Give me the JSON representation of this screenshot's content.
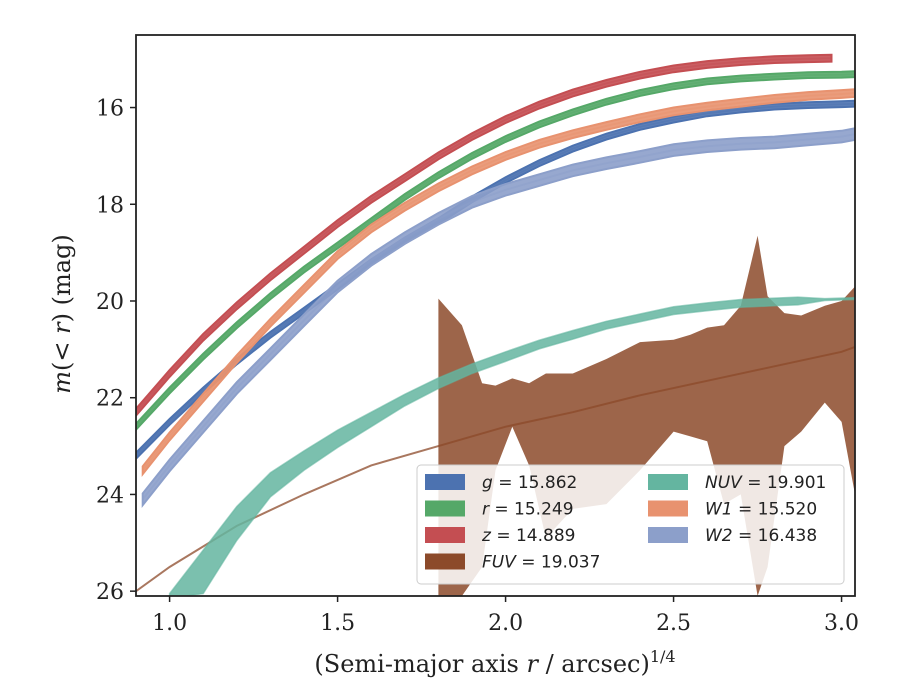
{
  "chart_data": {
    "type": "line",
    "xlabel": "(Semi-major axis r / arcsec)",
    "xlabel_sup": "1/4",
    "ylabel": "m(< r) (mag)",
    "xlim": [
      0.9,
      3.04
    ],
    "ylim": [
      26.1,
      14.5
    ],
    "y_inverted": true,
    "x_ticks": [
      1.0,
      1.5,
      2.0,
      2.5,
      3.0
    ],
    "x_tick_labels": [
      "1.0",
      "1.5",
      "2.0",
      "2.5",
      "3.0"
    ],
    "y_ticks": [
      16,
      18,
      20,
      22,
      24,
      26
    ],
    "y_tick_labels": [
      "16",
      "18",
      "20",
      "22",
      "24",
      "26"
    ],
    "grid": false,
    "legend_position": "lower-right",
    "series": [
      {
        "name": "g",
        "legend_value": "15.862",
        "color": "#4c72b0",
        "x": [
          0.9,
          1.0,
          1.1,
          1.2,
          1.3,
          1.4,
          1.5,
          1.6,
          1.7,
          1.8,
          1.9,
          2.0,
          2.1,
          2.2,
          2.3,
          2.4,
          2.5,
          2.6,
          2.7,
          2.8,
          2.9,
          3.0,
          3.04
        ],
        "y": [
          23.2,
          22.5,
          21.85,
          21.25,
          20.7,
          20.2,
          19.7,
          19.2,
          18.75,
          18.35,
          17.9,
          17.5,
          17.15,
          16.85,
          16.6,
          16.4,
          16.25,
          16.12,
          16.04,
          15.98,
          15.95,
          15.93,
          15.92
        ],
        "band": [
          0.06,
          0.06
        ]
      },
      {
        "name": "r",
        "legend_value": "15.249",
        "color": "#55a868",
        "x": [
          0.9,
          1.0,
          1.1,
          1.2,
          1.3,
          1.4,
          1.5,
          1.6,
          1.7,
          1.8,
          1.9,
          2.0,
          2.1,
          2.2,
          2.3,
          2.4,
          2.5,
          2.6,
          2.7,
          2.8,
          2.9,
          3.0,
          3.04
        ],
        "y": [
          22.6,
          21.85,
          21.15,
          20.5,
          19.9,
          19.35,
          18.85,
          18.35,
          17.85,
          17.4,
          17.0,
          16.65,
          16.35,
          16.1,
          15.88,
          15.7,
          15.56,
          15.46,
          15.4,
          15.36,
          15.33,
          15.32,
          15.31
        ],
        "band": [
          0.06,
          0.06
        ]
      },
      {
        "name": "z",
        "legend_value": "14.889",
        "color": "#c44e52",
        "x": [
          0.9,
          1.0,
          1.1,
          1.2,
          1.3,
          1.4,
          1.5,
          1.6,
          1.7,
          1.8,
          1.9,
          2.0,
          2.1,
          2.2,
          2.3,
          2.4,
          2.5,
          2.6,
          2.7,
          2.8,
          2.9,
          2.97
        ],
        "y": [
          22.3,
          21.5,
          20.75,
          20.1,
          19.5,
          18.95,
          18.4,
          17.9,
          17.45,
          17.0,
          16.6,
          16.25,
          15.95,
          15.7,
          15.5,
          15.33,
          15.2,
          15.11,
          15.05,
          15.01,
          14.99,
          14.98
        ],
        "band": [
          0.07,
          0.07
        ]
      },
      {
        "name": "FUV",
        "legend_value": "19.037",
        "color": "#8c4a2a",
        "x": [
          0.9,
          1.0,
          1.2,
          1.4,
          1.6,
          1.8,
          2.0,
          2.2,
          2.4,
          2.6,
          2.8,
          3.0,
          3.04
        ],
        "y": [
          26.0,
          25.5,
          24.65,
          24.0,
          23.4,
          23.0,
          22.6,
          22.3,
          21.95,
          21.65,
          21.35,
          21.05,
          20.95
        ],
        "band_x": [
          1.8,
          1.87,
          1.93,
          1.97,
          2.02,
          2.07,
          2.12,
          2.2,
          2.3,
          2.4,
          2.5,
          2.55,
          2.6,
          2.65,
          2.7,
          2.75,
          2.78,
          2.83,
          2.88,
          2.95,
          3.0,
          3.04
        ],
        "band_upper": [
          19.95,
          20.5,
          21.7,
          21.75,
          21.6,
          21.7,
          21.5,
          21.5,
          21.2,
          20.85,
          20.8,
          20.7,
          20.55,
          20.5,
          20.1,
          18.65,
          19.9,
          20.25,
          20.3,
          20.1,
          20.0,
          19.7
        ],
        "band_lower": [
          26.1,
          26.1,
          25.5,
          23.5,
          22.6,
          23.4,
          24.9,
          24.3,
          24.2,
          23.5,
          22.7,
          22.8,
          22.9,
          24.2,
          24.0,
          26.1,
          25.5,
          23.0,
          22.7,
          22.1,
          22.5,
          24.0
        ]
      },
      {
        "name": "NUV",
        "legend_value": "19.901",
        "color": "#64b5a0",
        "x": [
          1.0,
          1.1,
          1.2,
          1.3,
          1.4,
          1.5,
          1.6,
          1.7,
          1.8,
          1.9,
          2.0,
          2.1,
          2.2,
          2.3,
          2.4,
          2.5,
          2.6,
          2.7,
          2.8,
          2.87,
          2.95,
          3.04
        ],
        "y": [
          26.1,
          25.6,
          24.6,
          23.8,
          23.3,
          22.85,
          22.45,
          22.05,
          21.7,
          21.4,
          21.15,
          20.9,
          20.7,
          20.5,
          20.35,
          20.2,
          20.12,
          20.05,
          20.02,
          20.0,
          19.97,
          19.95
        ],
        "band_half": [
          0.05,
          0.45,
          0.35,
          0.25,
          0.2,
          0.18,
          0.15,
          0.12,
          0.11,
          0.1,
          0.1,
          0.09,
          0.09,
          0.08,
          0.08,
          0.08,
          0.08,
          0.08,
          0.08,
          0.08,
          0.02,
          0.02
        ]
      },
      {
        "name": "W1",
        "legend_value": "15.520",
        "color": "#e8926f",
        "x": [
          0.92,
          1.0,
          1.1,
          1.2,
          1.3,
          1.4,
          1.5,
          1.6,
          1.7,
          1.8,
          1.9,
          2.0,
          2.1,
          2.2,
          2.3,
          2.4,
          2.5,
          2.6,
          2.7,
          2.8,
          2.9,
          3.0,
          3.04
        ],
        "y": [
          23.5,
          22.8,
          22.0,
          21.2,
          20.45,
          19.75,
          19.05,
          18.5,
          18.05,
          17.65,
          17.3,
          17.0,
          16.75,
          16.55,
          16.38,
          16.22,
          16.08,
          15.98,
          15.9,
          15.82,
          15.76,
          15.72,
          15.7
        ],
        "band": [
          0.08,
          0.08
        ]
      },
      {
        "name": "W2",
        "legend_value": "16.438",
        "color": "#8c9fca",
        "x": [
          0.92,
          1.0,
          1.1,
          1.2,
          1.3,
          1.4,
          1.5,
          1.6,
          1.7,
          1.8,
          1.9,
          2.0,
          2.1,
          2.2,
          2.3,
          2.4,
          2.5,
          2.6,
          2.7,
          2.8,
          2.9,
          3.0,
          3.04
        ],
        "y": [
          24.1,
          23.4,
          22.6,
          21.8,
          21.1,
          20.4,
          19.7,
          19.15,
          18.7,
          18.3,
          17.95,
          17.7,
          17.5,
          17.3,
          17.15,
          17.02,
          16.88,
          16.8,
          16.75,
          16.72,
          16.66,
          16.6,
          16.55
        ],
        "band": [
          0.12,
          0.12
        ]
      }
    ],
    "legend_entries": [
      {
        "label_var": "g",
        "label_rest": " = 15.862",
        "color": "#4c72b0"
      },
      {
        "label_var": "r",
        "label_rest": " = 15.249",
        "color": "#55a868"
      },
      {
        "label_var": "z",
        "label_rest": " = 14.889",
        "color": "#c44e52"
      },
      {
        "label_var": "FUV",
        "label_rest": " = 19.037",
        "color": "#8c4a2a"
      },
      {
        "label_var": "NUV",
        "label_rest": " = 19.901",
        "color": "#64b5a0"
      },
      {
        "label_var": "W1",
        "label_rest": " = 15.520",
        "color": "#e8926f"
      },
      {
        "label_var": "W2",
        "label_rest": " = 16.438",
        "color": "#8c9fca"
      }
    ]
  }
}
